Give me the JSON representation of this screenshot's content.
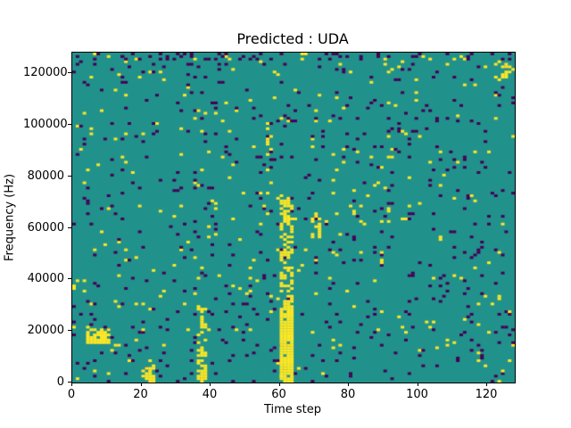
{
  "figure": {
    "background": "#ffffff"
  },
  "chart_data": {
    "type": "heatmap",
    "title": "Predicted : UDA",
    "xlabel": "Time step",
    "ylabel": "Frequency (Hz)",
    "x_range": [
      0,
      128
    ],
    "y_range": [
      0,
      128000
    ],
    "x_ticks": [
      0,
      20,
      40,
      60,
      80,
      100,
      120
    ],
    "y_ticks": [
      0,
      20000,
      40000,
      60000,
      80000,
      100000,
      120000
    ],
    "grid_size": [
      128,
      128
    ],
    "legend": "none",
    "grid": false,
    "colors": {
      "low": "#440154",
      "mid": "#21918c",
      "high": "#fde725"
    },
    "value_meaning": {
      "low": "below-background cell (dark purple)",
      "mid": "background cell (teal)",
      "high": "active cell (yellow)"
    },
    "noise": {
      "seed": 42,
      "purple_density": 0.035,
      "yellow_density": 0.018
    },
    "features": [
      {
        "x": [
          60,
          64
        ],
        "y": [
          0,
          30000
        ],
        "color": "yellow",
        "density": 0.95
      },
      {
        "x": [
          60,
          64
        ],
        "y": [
          30000,
          72000
        ],
        "color": "yellow",
        "density": 0.5
      },
      {
        "x": [
          4,
          11
        ],
        "y": [
          15000,
          21000
        ],
        "color": "yellow",
        "density": 0.85
      },
      {
        "x": [
          36,
          39
        ],
        "y": [
          0,
          30000
        ],
        "color": "yellow",
        "density": 0.45
      },
      {
        "x": [
          69,
          72
        ],
        "y": [
          56000,
          66000
        ],
        "color": "yellow",
        "density": 0.5
      },
      {
        "x": [
          56,
          58
        ],
        "y": [
          88000,
          102000
        ],
        "color": "yellow",
        "density": 0.4
      },
      {
        "x": [
          20,
          24
        ],
        "y": [
          0,
          6000
        ],
        "color": "yellow",
        "density": 0.5
      },
      {
        "x": [
          124,
          128
        ],
        "y": [
          118000,
          124000
        ],
        "color": "yellow",
        "density": 0.4
      },
      {
        "x": [
          0,
          128
        ],
        "y": [
          125000,
          128000
        ],
        "color": "purple",
        "density": 0.12
      }
    ]
  }
}
